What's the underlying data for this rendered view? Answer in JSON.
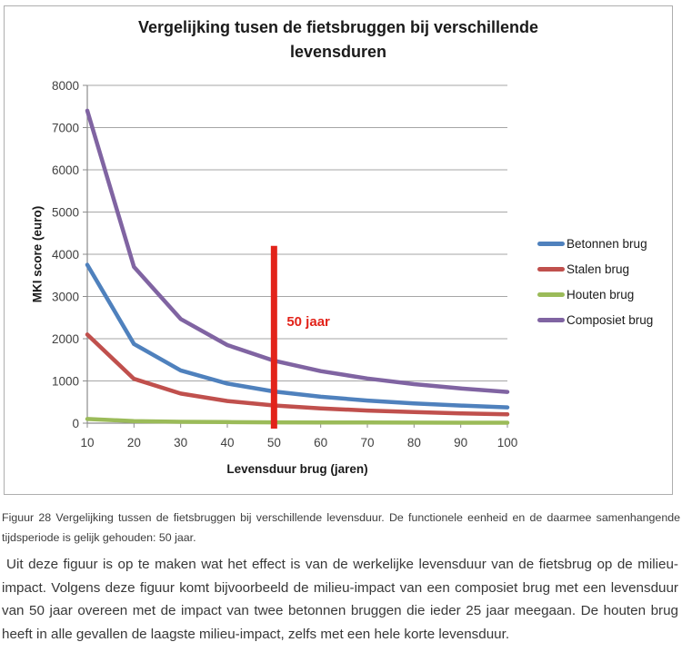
{
  "chart_data": {
    "type": "line",
    "title": "Vergelijking tusen de fietsbruggen bij verschillende levensduren",
    "xlabel": "Levensduur brug (jaren)",
    "ylabel": "MKI score (euro)",
    "x": [
      10,
      20,
      30,
      40,
      50,
      60,
      70,
      80,
      90,
      100
    ],
    "xlim": [
      10,
      100
    ],
    "ylim": [
      0,
      8000
    ],
    "y_tick_step": 1000,
    "grid": "horizontal",
    "grid_color": "#a6a6a6",
    "axis_color": "#8c8c8c",
    "tick_label_color": "#404040",
    "legend_position": "right",
    "series": [
      {
        "name": "Betonnen brug",
        "color": "#4F81BD",
        "values": [
          3750,
          1875,
          1250,
          938,
          750,
          625,
          536,
          469,
          417,
          375
        ]
      },
      {
        "name": "Stalen brug",
        "color": "#C0504D",
        "values": [
          2100,
          1050,
          700,
          525,
          420,
          350,
          300,
          263,
          233,
          210
        ]
      },
      {
        "name": "Houten brug",
        "color": "#9BBB59",
        "values": [
          100,
          50,
          33,
          25,
          20,
          17,
          14,
          13,
          11,
          10
        ]
      },
      {
        "name": "Composiet brug",
        "color": "#8064A2",
        "values": [
          7400,
          3700,
          2467,
          1850,
          1480,
          1233,
          1057,
          925,
          822,
          740
        ]
      }
    ],
    "annotation": {
      "label": "50 jaar",
      "x": 50,
      "y_top": 4200,
      "y_bottom": 0,
      "color": "#E2231A"
    }
  },
  "figure": {
    "caption": "Figuur 28 Vergelijking tussen de fietsbruggen bij verschillende levensduur. De functionele eenheid en de daarmee samenhangende tijdsperiode is gelijk gehouden: 50 jaar.",
    "body": "Uit deze figuur is op te maken wat het effect is van de werkelijke levensduur van de fietsbrug op de milieu-impact. Volgens deze figuur komt bijvoorbeeld de milieu-impact van een composiet brug met een levensduur van 50 jaar overeen met de impact van twee betonnen bruggen die ieder 25 jaar meegaan. De houten brug heeft in alle gevallen de laagste milieu-impact, zelfs met een hele korte levensduur."
  }
}
